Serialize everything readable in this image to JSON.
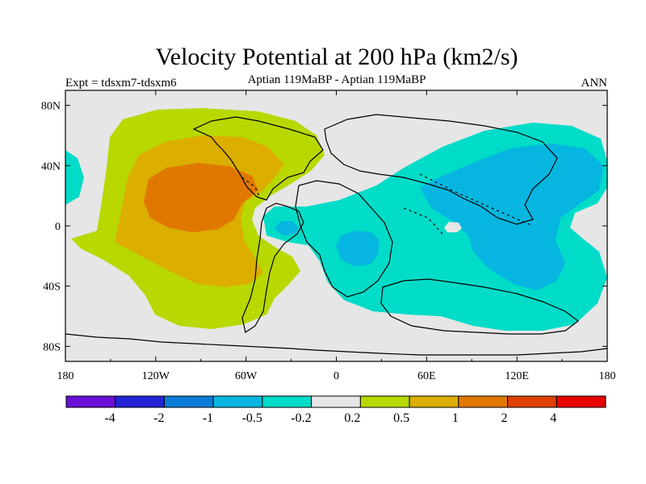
{
  "chart_data": {
    "type": "contour-map",
    "title": "Velocity Potential at 200 hPa (km2/s)",
    "left_label": "Expt = tdsxm7-tdsxm6",
    "center_label": "Aptian   119MaBP - Aptian   119MaBP",
    "right_label": "ANN",
    "projection": "cylindrical-equidistant",
    "lon_range": [
      180,
      540
    ],
    "lat_range": [
      -90,
      90
    ],
    "x_ticks": [
      {
        "value": 180,
        "label": "180"
      },
      {
        "value": 240,
        "label": "120W"
      },
      {
        "value": 300,
        "label": "60W"
      },
      {
        "value": 360,
        "label": "0"
      },
      {
        "value": 420,
        "label": "60E"
      },
      {
        "value": 480,
        "label": "120E"
      },
      {
        "value": 540,
        "label": "180"
      }
    ],
    "y_ticks": [
      {
        "value": 80,
        "label": "80N"
      },
      {
        "value": 40,
        "label": "40N"
      },
      {
        "value": 0,
        "label": "0"
      },
      {
        "value": -40,
        "label": "40S"
      },
      {
        "value": -80,
        "label": "80S"
      }
    ],
    "contour_levels": [
      "-4",
      "-2",
      "-1",
      "-0.5",
      "-0.2",
      "0.2",
      "0.5",
      "1",
      "2",
      "4"
    ],
    "colorbar_colors": [
      "#6a0fd6",
      "#2424d6",
      "#0a7cd8",
      "#06b6e0",
      "#00dcc8",
      "#e6e6e6",
      "#b8d800",
      "#dbae00",
      "#e07800",
      "#e04000",
      "#e80000"
    ],
    "regions": [
      {
        "name": "east-pacific-high",
        "level_band": "0.2 to 0.5",
        "color": "#b8d800",
        "center_lon": 265,
        "center_lat": 20
      },
      {
        "name": "east-pacific-mid",
        "level_band": "0.5 to 1",
        "color": "#dbae00",
        "center_lon": 255,
        "center_lat": 5
      },
      {
        "name": "east-pacific-core",
        "level_band": "1 to 2",
        "color": "#e07800",
        "center_lon": 250,
        "center_lat": 18
      },
      {
        "name": "indo-pacific-low",
        "level_band": "-0.5 to -0.2",
        "color": "#00dcc8",
        "center_lon": 455,
        "center_lat": 0
      },
      {
        "name": "west-pacific-core",
        "level_band": "-1 to -0.5",
        "color": "#06b6e0",
        "center_lon": 490,
        "center_lat": 15
      },
      {
        "name": "africa-core",
        "level_band": "-1 to -0.5",
        "color": "#06b6e0",
        "center_lon": 375,
        "center_lat": -13
      },
      {
        "name": "atlantic-small-core",
        "level_band": "-1 to -0.5",
        "color": "#06b6e0",
        "center_lon": 325,
        "center_lat": -1
      }
    ],
    "background_color": "#e6e6e6"
  }
}
